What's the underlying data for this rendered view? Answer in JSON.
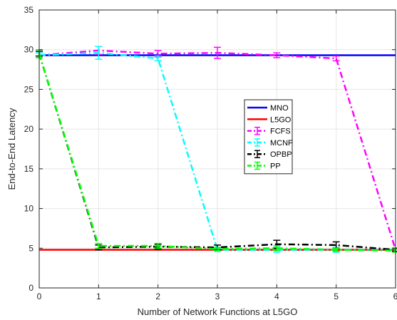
{
  "chart_data": {
    "type": "line",
    "title": "",
    "xlabel": "Number of Network Functions at L5GO",
    "ylabel": "End-to-End Latency",
    "xlim": [
      0,
      6
    ],
    "ylim": [
      0,
      35
    ],
    "x_ticks": [
      "0",
      "1",
      "2",
      "3",
      "4",
      "5",
      "6"
    ],
    "y_ticks": [
      "0",
      "5",
      "10",
      "15",
      "20",
      "25",
      "30",
      "35"
    ],
    "grid": true,
    "legend_position": "center-right",
    "x": [
      0,
      1,
      2,
      3,
      4,
      5,
      6
    ],
    "series": [
      {
        "name": "MNO",
        "color": "#0000ff",
        "style": "solid",
        "error_bars": false,
        "values": [
          29.3,
          29.3,
          29.3,
          29.3,
          29.3,
          29.3,
          29.3
        ],
        "errors": [
          0,
          0,
          0,
          0,
          0,
          0,
          0
        ]
      },
      {
        "name": "L5GO",
        "color": "#ff0000",
        "style": "solid",
        "error_bars": false,
        "values": [
          4.8,
          4.8,
          4.8,
          4.8,
          4.8,
          4.8,
          4.8
        ],
        "errors": [
          0,
          0,
          0,
          0,
          0,
          0,
          0
        ]
      },
      {
        "name": "FCFS",
        "color": "#ff00ff",
        "style": "dashdot",
        "error_bars": true,
        "values": [
          29.3,
          29.9,
          29.5,
          29.6,
          29.3,
          28.9,
          4.8
        ],
        "errors": [
          0.3,
          0.5,
          0.4,
          0.7,
          0.3,
          0.3,
          0.2
        ]
      },
      {
        "name": "MCNF",
        "color": "#00ffff",
        "style": "dashdot",
        "error_bars": true,
        "values": [
          29.3,
          29.6,
          28.9,
          4.8,
          4.8,
          4.8,
          4.8
        ],
        "errors": [
          0.3,
          0.8,
          0.3,
          0.2,
          0.3,
          0.3,
          0.2
        ]
      },
      {
        "name": "OPBP",
        "color": "#000000",
        "style": "dashdot",
        "error_bars": true,
        "values": [
          29.5,
          5.1,
          5.2,
          5.1,
          5.5,
          5.4,
          4.8
        ],
        "errors": [
          0.3,
          0.3,
          0.3,
          0.3,
          0.5,
          0.4,
          0.2
        ]
      },
      {
        "name": "PP",
        "color": "#00ff00",
        "style": "dashdot",
        "error_bars": true,
        "values": [
          29.5,
          5.3,
          5.3,
          4.9,
          5.0,
          4.8,
          4.7
        ],
        "errors": [
          0.5,
          0.3,
          0.3,
          0.2,
          0.3,
          0.2,
          0.2
        ]
      }
    ]
  }
}
